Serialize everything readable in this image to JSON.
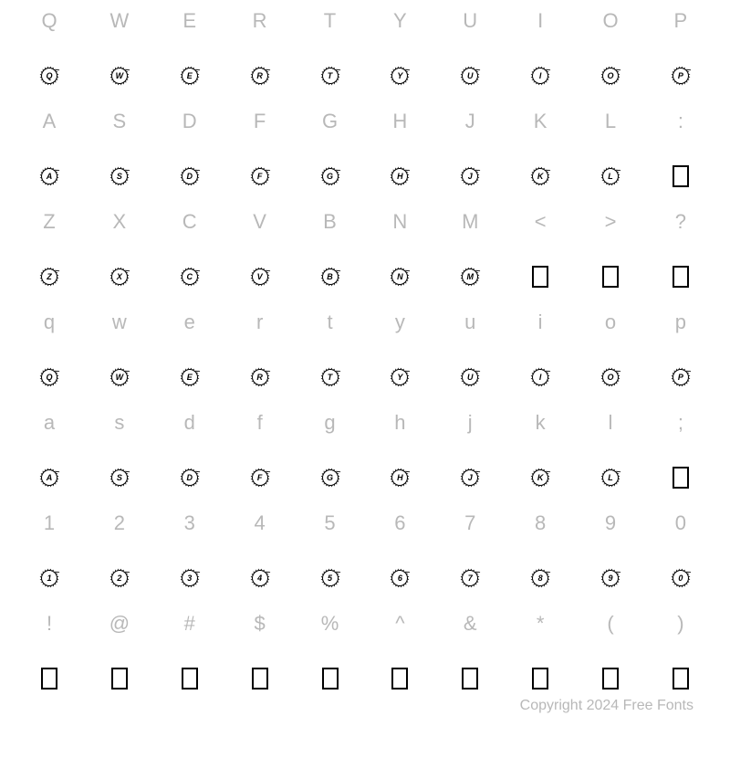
{
  "footer_text": "Copyright 2024 Free Fonts",
  "label_color": "#b8b8b8",
  "glyph_color": "#000000",
  "background_color": "#ffffff",
  "label_fontsize": 22,
  "inner_fontsize": 9,
  "columns": 10,
  "rows": [
    {
      "keys": [
        "Q",
        "W",
        "E",
        "R",
        "T",
        "Y",
        "U",
        "I",
        "O",
        "P"
      ],
      "glyphs": [
        {
          "type": "wreath",
          "letter": "Q"
        },
        {
          "type": "wreath",
          "letter": "W"
        },
        {
          "type": "wreath",
          "letter": "E"
        },
        {
          "type": "wreath",
          "letter": "R"
        },
        {
          "type": "wreath",
          "letter": "T"
        },
        {
          "type": "wreath",
          "letter": "Y"
        },
        {
          "type": "wreath",
          "letter": "U"
        },
        {
          "type": "wreath",
          "letter": "I"
        },
        {
          "type": "wreath",
          "letter": "O"
        },
        {
          "type": "wreath",
          "letter": "P"
        }
      ]
    },
    {
      "keys": [
        "A",
        "S",
        "D",
        "F",
        "G",
        "H",
        "J",
        "K",
        "L",
        ":"
      ],
      "glyphs": [
        {
          "type": "wreath",
          "letter": "A"
        },
        {
          "type": "wreath",
          "letter": "S"
        },
        {
          "type": "wreath",
          "letter": "D"
        },
        {
          "type": "wreath",
          "letter": "F"
        },
        {
          "type": "wreath",
          "letter": "G"
        },
        {
          "type": "wreath",
          "letter": "H"
        },
        {
          "type": "wreath",
          "letter": "J"
        },
        {
          "type": "wreath",
          "letter": "K"
        },
        {
          "type": "wreath",
          "letter": "L"
        },
        {
          "type": "tofu"
        }
      ]
    },
    {
      "keys": [
        "Z",
        "X",
        "C",
        "V",
        "B",
        "N",
        "M",
        "<",
        ">",
        "?"
      ],
      "glyphs": [
        {
          "type": "wreath",
          "letter": "Z"
        },
        {
          "type": "wreath",
          "letter": "X"
        },
        {
          "type": "wreath",
          "letter": "C"
        },
        {
          "type": "wreath",
          "letter": "V"
        },
        {
          "type": "wreath",
          "letter": "B"
        },
        {
          "type": "wreath",
          "letter": "N"
        },
        {
          "type": "wreath",
          "letter": "M"
        },
        {
          "type": "tofu"
        },
        {
          "type": "tofu"
        },
        {
          "type": "tofu"
        }
      ]
    },
    {
      "keys": [
        "q",
        "w",
        "e",
        "r",
        "t",
        "y",
        "u",
        "i",
        "o",
        "p"
      ],
      "glyphs": [
        {
          "type": "wreath",
          "letter": "Q"
        },
        {
          "type": "wreath",
          "letter": "W"
        },
        {
          "type": "wreath",
          "letter": "E"
        },
        {
          "type": "wreath",
          "letter": "R"
        },
        {
          "type": "wreath",
          "letter": "T"
        },
        {
          "type": "wreath",
          "letter": "Y"
        },
        {
          "type": "wreath",
          "letter": "U"
        },
        {
          "type": "wreath",
          "letter": "I"
        },
        {
          "type": "wreath",
          "letter": "O"
        },
        {
          "type": "wreath",
          "letter": "P"
        }
      ]
    },
    {
      "keys": [
        "a",
        "s",
        "d",
        "f",
        "g",
        "h",
        "j",
        "k",
        "l",
        ";"
      ],
      "glyphs": [
        {
          "type": "wreath",
          "letter": "A"
        },
        {
          "type": "wreath",
          "letter": "S"
        },
        {
          "type": "wreath",
          "letter": "D"
        },
        {
          "type": "wreath",
          "letter": "F"
        },
        {
          "type": "wreath",
          "letter": "G"
        },
        {
          "type": "wreath",
          "letter": "H"
        },
        {
          "type": "wreath",
          "letter": "J"
        },
        {
          "type": "wreath",
          "letter": "K"
        },
        {
          "type": "wreath",
          "letter": "L"
        },
        {
          "type": "tofu"
        }
      ]
    },
    {
      "keys": [
        "1",
        "2",
        "3",
        "4",
        "5",
        "6",
        "7",
        "8",
        "9",
        "0"
      ],
      "glyphs": [
        {
          "type": "wreath",
          "letter": "1"
        },
        {
          "type": "wreath",
          "letter": "2"
        },
        {
          "type": "wreath",
          "letter": "3"
        },
        {
          "type": "wreath",
          "letter": "4"
        },
        {
          "type": "wreath",
          "letter": "5"
        },
        {
          "type": "wreath",
          "letter": "6"
        },
        {
          "type": "wreath",
          "letter": "7"
        },
        {
          "type": "wreath",
          "letter": "8"
        },
        {
          "type": "wreath",
          "letter": "9"
        },
        {
          "type": "wreath",
          "letter": "0"
        }
      ]
    },
    {
      "keys": [
        "!",
        "@",
        "#",
        "$",
        "%",
        "^",
        "&",
        "*",
        "(",
        ")"
      ],
      "glyphs": [
        {
          "type": "tofu"
        },
        {
          "type": "tofu"
        },
        {
          "type": "tofu"
        },
        {
          "type": "tofu"
        },
        {
          "type": "tofu"
        },
        {
          "type": "tofu"
        },
        {
          "type": "tofu"
        },
        {
          "type": "tofu"
        },
        {
          "type": "tofu"
        },
        {
          "type": "tofu"
        }
      ]
    }
  ]
}
